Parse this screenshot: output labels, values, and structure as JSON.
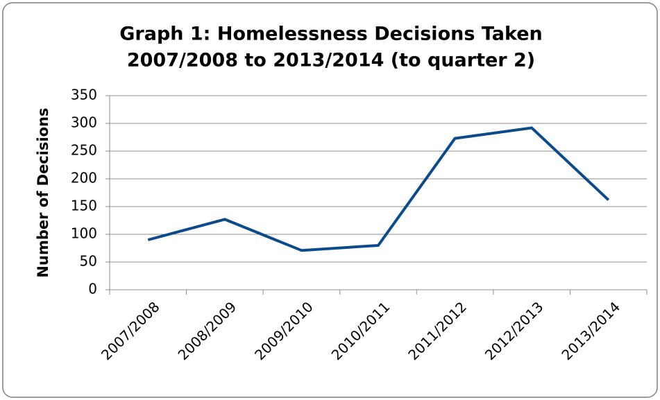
{
  "chart_data": {
    "type": "line",
    "title": [
      "Graph 1: Homelessness Decisions Taken",
      "2007/2008 to 2013/2014 (to quarter 2)"
    ],
    "y_label": "Number of Decisions",
    "categories": [
      "2007/2008",
      "2008/2009",
      "2009/2010",
      "2010/2011",
      "2011/2012",
      "2012/2013",
      "2013/2014"
    ],
    "series": [
      {
        "name": "Decisions",
        "color": "#0b4a8b",
        "values": [
          90,
          127,
          71,
          80,
          273,
          292,
          162
        ]
      }
    ],
    "ylim": [
      0,
      350
    ],
    "yticks": [
      0,
      50,
      100,
      150,
      200,
      250,
      300,
      350
    ],
    "grid": true
  }
}
